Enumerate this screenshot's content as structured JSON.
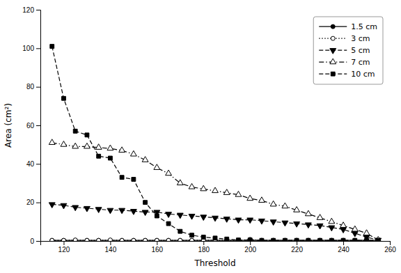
{
  "chart_data": {
    "type": "line",
    "xlabel": "Threshold",
    "ylabel": "Area (cm²)",
    "xlim": [
      110,
      260
    ],
    "ylim": [
      0,
      120
    ],
    "xticks": [
      120,
      140,
      160,
      180,
      200,
      220,
      240,
      260
    ],
    "yticks": [
      0,
      20,
      40,
      60,
      80,
      100,
      120
    ],
    "grid": false,
    "legend": "upper right",
    "x": [
      115,
      120,
      125,
      130,
      135,
      140,
      145,
      150,
      155,
      160,
      165,
      170,
      175,
      180,
      185,
      190,
      195,
      200,
      205,
      210,
      215,
      220,
      225,
      230,
      235,
      240,
      245,
      250,
      255
    ],
    "series": [
      {
        "name": "1.5 cm",
        "color": "black",
        "marker": "circle",
        "line_style": "solid",
        "values": [
          0.3,
          0.3,
          0.3,
          0.3,
          0.3,
          0.3,
          0.3,
          0.3,
          0.3,
          0.3,
          0.3,
          0.3,
          0.3,
          0.3,
          0.3,
          0.3,
          0.3,
          0.3,
          0.3,
          0.3,
          0.3,
          0.3,
          0.3,
          0.3,
          0.3,
          0.3,
          0.3,
          0.3,
          0.3
        ]
      },
      {
        "name": "3 cm",
        "color": "black",
        "marker": "circle-open",
        "line_style": "dotted",
        "values": [
          0.3,
          0.3,
          0.5,
          0.3,
          0.3,
          0.5,
          0.3,
          0.3,
          0.3,
          0.3,
          0.3,
          0.3,
          0.3,
          0.3,
          0.5,
          0.3,
          0.3,
          0.8,
          0.3,
          0.3,
          0.3,
          0.3,
          0.3,
          0.3,
          0.3,
          0.3,
          0.3,
          0.3,
          0.3
        ]
      },
      {
        "name": "5 cm",
        "color": "black",
        "marker": "triangle-down",
        "line_style": "dashed",
        "values": [
          19,
          18.5,
          17.5,
          17,
          16.5,
          16,
          16,
          15.5,
          15,
          15,
          14,
          13.5,
          13,
          12.5,
          12,
          11.5,
          11,
          11,
          10.5,
          10,
          9.5,
          9,
          8.5,
          8,
          7,
          6,
          4,
          2,
          0.5
        ]
      },
      {
        "name": "7 cm",
        "color": "black",
        "marker": "triangle-up-open",
        "line_style": "dashdot",
        "values": [
          51,
          50,
          49,
          49,
          48.5,
          48,
          47,
          45,
          42,
          38,
          35,
          30,
          28,
          27,
          26,
          25,
          24,
          22,
          21,
          19,
          18,
          16,
          14,
          12,
          10,
          8,
          6,
          4,
          0.5
        ]
      },
      {
        "name": "10 cm",
        "color": "black",
        "marker": "square",
        "line_style": "dashed",
        "values": [
          101,
          74,
          57,
          55,
          44,
          43,
          33,
          32,
          20,
          13,
          9,
          5,
          3,
          2,
          1.5,
          1,
          0.5,
          0.5,
          0.3,
          0.3,
          0.3,
          0.3,
          0.3,
          0.3,
          0.3,
          0.3,
          0.3,
          0.3,
          0.3
        ]
      }
    ]
  }
}
